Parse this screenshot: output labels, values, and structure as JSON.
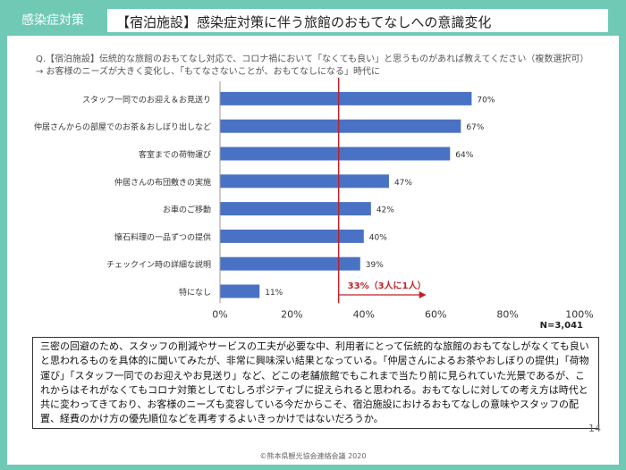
{
  "header": {
    "tag": "感染症対策",
    "title": "【宿泊施設】感染症対策に伴う旅館のおもてなしへの意識変化"
  },
  "question": {
    "line1": "Q.【宿泊施設】伝統的な旅館のおもてなし対応で、コロナ禍において「なくても良い」と思うものがあれば教えてください（複数選択可）",
    "line2": "→ お客様のニーズが大きく変化し、「もてなさないことが、おもてなしになる」時代に"
  },
  "chart_data": {
    "type": "bar",
    "orientation": "horizontal",
    "categories": [
      "スタッフ一同でのお迎え＆お見送り",
      "仲居さんからの部屋でのお茶＆おしぼり出しなど",
      "客室までの荷物運び",
      "仲居さんの布団敷きの実施",
      "お車のご移動",
      "懐石料理の一品ずつの提供",
      "チェックイン時の詳細な説明",
      "特になし"
    ],
    "values": [
      70,
      67,
      64,
      47,
      42,
      40,
      39,
      11
    ],
    "value_labels": [
      "70%",
      "67%",
      "64%",
      "47%",
      "42%",
      "40%",
      "39%",
      "11%"
    ],
    "xlim": [
      0,
      100
    ],
    "x_ticks": [
      "0%",
      "20%",
      "40%",
      "60%",
      "80%",
      "100%"
    ],
    "grid": false,
    "bar_color": "#4a72c4",
    "reference_line": {
      "value": 33,
      "label": "33%（3人に1人）",
      "color": "#c0202a"
    },
    "n_label": "N=3,041"
  },
  "summary": "三密の回避のため、スタッフの削減やサービスの工夫が必要な中、利用者にとって伝統的な旅館のおもてなしがなくても良いと思われるものを具体的に聞いてみたが、非常に興味深い結果となっている。「仲居さんによるお茶やおしぼりの提供」「荷物運び」「スタッフ一同でのお迎えやお見送り」など、どこの老舗旅館でもこれまで当たり前に見られていた光景であるが、これからはそれがなくてもコロナ対策としてむしろポジティブに捉えられると思われる。おもてなしに対しての考え方は時代と共に変わってきており、お客様のニーズも変容している今だからこそ、宿泊施設におけるおもてなしの意味やスタッフの配置、経費のかけ方の優先順位などを再考するよいきっかけではないだろうか。",
  "footer": {
    "page": "14",
    "copyright": "©熊本県観光協会連絡会議 2020"
  }
}
